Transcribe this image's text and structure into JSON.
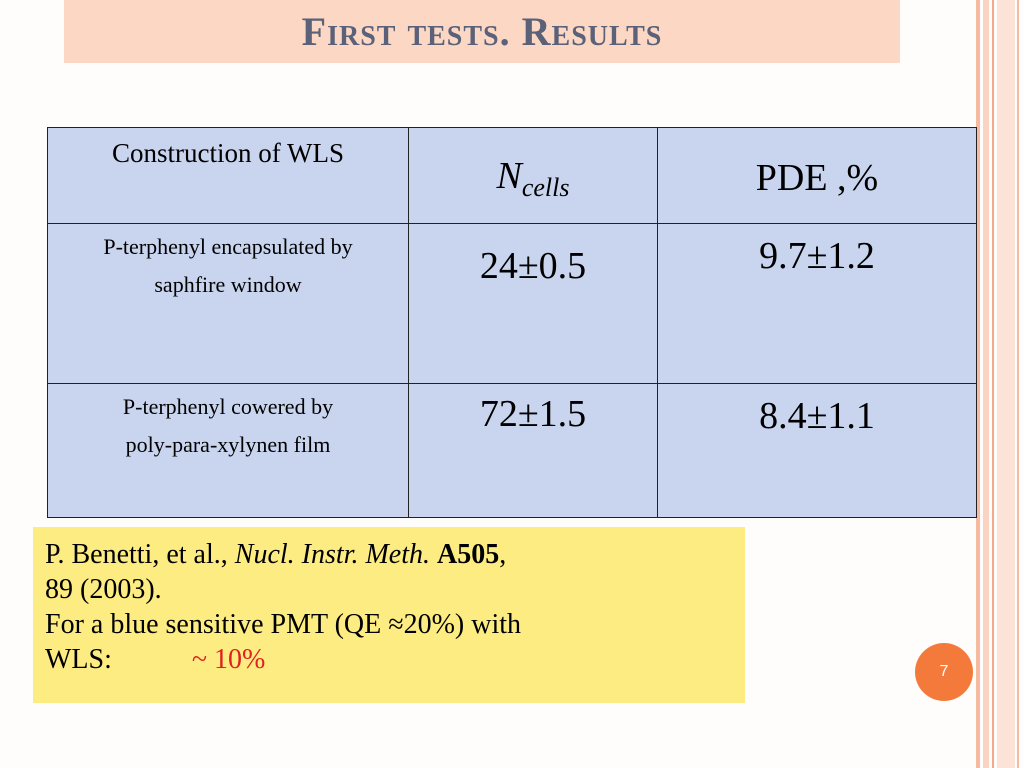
{
  "slide": {
    "title": "First tests. Results",
    "page_number": "7"
  },
  "table": {
    "header": {
      "construction": "Construction of WLS",
      "ncells_main": "N",
      "ncells_sub": "cells",
      "pde": "PDE ,%"
    },
    "rows": [
      {
        "desc_line1": "P-terphenyl encapsulated by",
        "desc_line2": "saphfire window",
        "ncells": "24±0.5",
        "pde": "9.7±1.2"
      },
      {
        "desc_line1": "P-terphenyl cowered by",
        "desc_line2": "poly-para-xylynen film",
        "ncells": "72±1.5",
        "pde": "8.4±1.1"
      }
    ]
  },
  "reference": {
    "authors": "P. Benetti, et al., ",
    "journal": "Nucl. Instr. Meth.",
    "volume": "A505",
    "pages_year": "89 (2003).",
    "note": "For a blue sensitive PMT (QE ≈20%) with",
    "wls_label": "WLS:",
    "wls_value": "~ 10%"
  },
  "colors": {
    "title_bg": "#fbd7c4",
    "title_text": "#5a6178",
    "table_bg": "#c9d5ef",
    "ref_bg": "#fdec82",
    "highlight_red": "#e02020",
    "badge": "#f47a3c"
  }
}
